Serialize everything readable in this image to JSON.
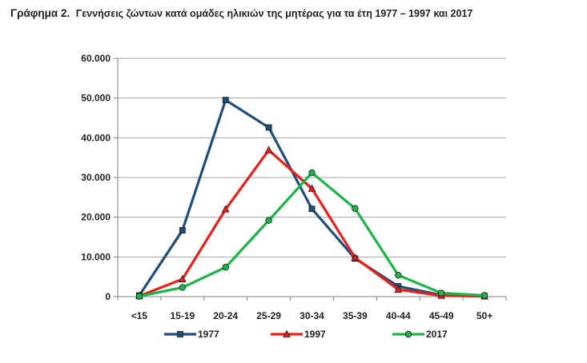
{
  "caption": {
    "label": "Γράφημα 2.",
    "title": "Γεννήσεις ζώντων κατά ομάδες ηλικιών της μητέρας για τα έτη 1977 – 1997 και 2017"
  },
  "chart_data": {
    "type": "line",
    "title": "Γεννήσεις ζώντων κατά ομάδες ηλικιών της μητέρας για τα έτη 1977 – 1997 και 2017",
    "xlabel": "",
    "ylabel": "",
    "categories": [
      "<15",
      "15-19",
      "20-24",
      "25-29",
      "30-34",
      "35-39",
      "40-44",
      "45-49",
      "50+"
    ],
    "ylim": [
      0,
      60000
    ],
    "yticks": [
      0,
      10000,
      20000,
      30000,
      40000,
      50000,
      60000
    ],
    "ytick_labels": [
      "0",
      "10.000",
      "20.000",
      "30.000",
      "40.000",
      "50.000",
      "60.000"
    ],
    "grid": "horizontal",
    "legend": "bottom",
    "series": [
      {
        "name": "1977",
        "color": "#1f4e79",
        "marker": "square",
        "values": [
          300,
          16700,
          49500,
          42600,
          22100,
          9600,
          2600,
          400,
          100
        ]
      },
      {
        "name": "1997",
        "color": "#e8201c",
        "marker": "triangle",
        "values": [
          150,
          4400,
          22000,
          36900,
          27200,
          9800,
          1800,
          250,
          80
        ]
      },
      {
        "name": "2017",
        "color": "#1db54a",
        "marker": "circle",
        "values": [
          100,
          2300,
          7400,
          19200,
          31200,
          22200,
          5400,
          900,
          300
        ]
      }
    ]
  }
}
